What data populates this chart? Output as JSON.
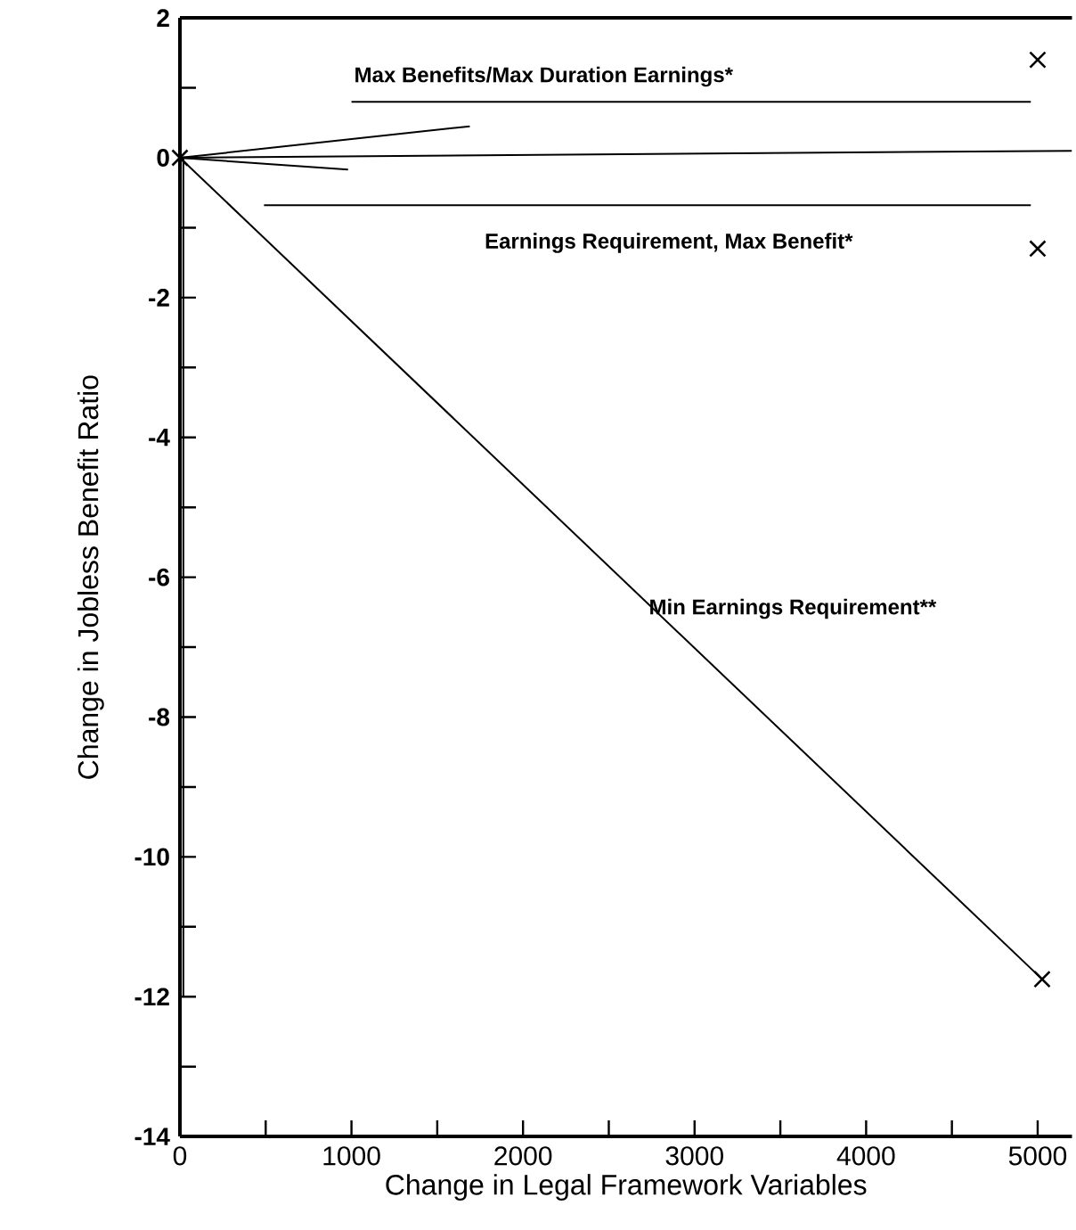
{
  "chart_data": {
    "type": "line",
    "xlabel": "Change in Legal Framework Variables",
    "ylabel": "Change in Jobless Benefit Ratio",
    "xlim": [
      0,
      5200
    ],
    "ylim": [
      -14,
      2
    ],
    "xticks": [
      0,
      1000,
      2000,
      3000,
      4000,
      5000
    ],
    "yticks": [
      -14,
      -12,
      -10,
      -8,
      -6,
      -4,
      -2,
      0,
      2
    ],
    "grid": false,
    "legend": false,
    "line_style": "solid",
    "marker": "none",
    "series": [
      {
        "name": "Min Earnings Requirement**",
        "color": "#000000",
        "x": [
          0,
          5026
        ],
        "values": [
          0,
          -11.75
        ],
        "marker": "cross"
      },
      {
        "color": "#000000",
        "x": [
          0,
          5200
        ],
        "values": [
          0,
          0.1
        ]
      },
      {
        "color": "#000000",
        "x": [
          0,
          1690
        ],
        "values": [
          0,
          0.45
        ]
      },
      {
        "color": "#000000",
        "x": [
          0,
          980
        ],
        "values": [
          0,
          -0.17
        ]
      },
      {
        "color": "#000000",
        "x": [
          20,
          20
        ],
        "values": [
          0,
          -12
        ]
      },
      {
        "name": "Max Benefits/Max Duration Earnings*",
        "color": "#000000",
        "x": [
          1000,
          4960
        ],
        "values": [
          0.8,
          0.8
        ]
      },
      {
        "name": "Earnings Requirement, Max Benefit*",
        "color": "#000000",
        "x": [
          490,
          4960
        ],
        "values": [
          -0.68,
          -0.68
        ]
      },
      {
        "type": "scatter",
        "color": "#000000",
        "x": [
          5000,
          5000
        ],
        "values": [
          1.4,
          -1.3
        ],
        "marker": "cross"
      }
    ]
  }
}
